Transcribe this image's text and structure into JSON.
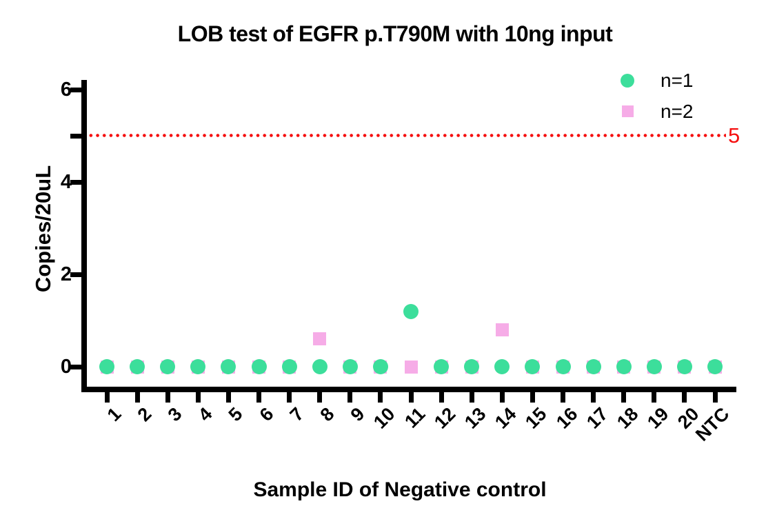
{
  "chart_data": {
    "type": "scatter",
    "title": "LOB test of EGFR p.T790M with 10ng input",
    "xlabel": "Sample ID of Negative control",
    "ylabel": "Copies/20uL",
    "categories": [
      "1",
      "2",
      "3",
      "4",
      "5",
      "6",
      "7",
      "8",
      "9",
      "10",
      "11",
      "12",
      "13",
      "14",
      "15",
      "16",
      "17",
      "18",
      "19",
      "20",
      "NTC"
    ],
    "series": [
      {
        "name": "n=1",
        "marker": "circle",
        "color": "#3CDE9B",
        "values": [
          0,
          0,
          0,
          0,
          0,
          0,
          0,
          0,
          0,
          0,
          1.2,
          0,
          0,
          0,
          0,
          0,
          0,
          0,
          0,
          0,
          0
        ]
      },
      {
        "name": "n=2",
        "marker": "square",
        "color": "#F6ACE7",
        "values": [
          0,
          0,
          0,
          0,
          0,
          0,
          0,
          0.6,
          0,
          0,
          0,
          0,
          0,
          0.8,
          0,
          0,
          0,
          0,
          0,
          0,
          0
        ]
      }
    ],
    "threshold_line": {
      "value": 5,
      "label": "5",
      "color": "#F50F0F",
      "style": "dotted"
    },
    "ylim": [
      0,
      6
    ],
    "yticks": [
      0,
      2,
      4,
      6
    ],
    "extra_yticks": [
      5
    ],
    "legend_position": "top-right",
    "grid": false,
    "axis_color": "#000000",
    "background_color": "#FFFFFF"
  }
}
